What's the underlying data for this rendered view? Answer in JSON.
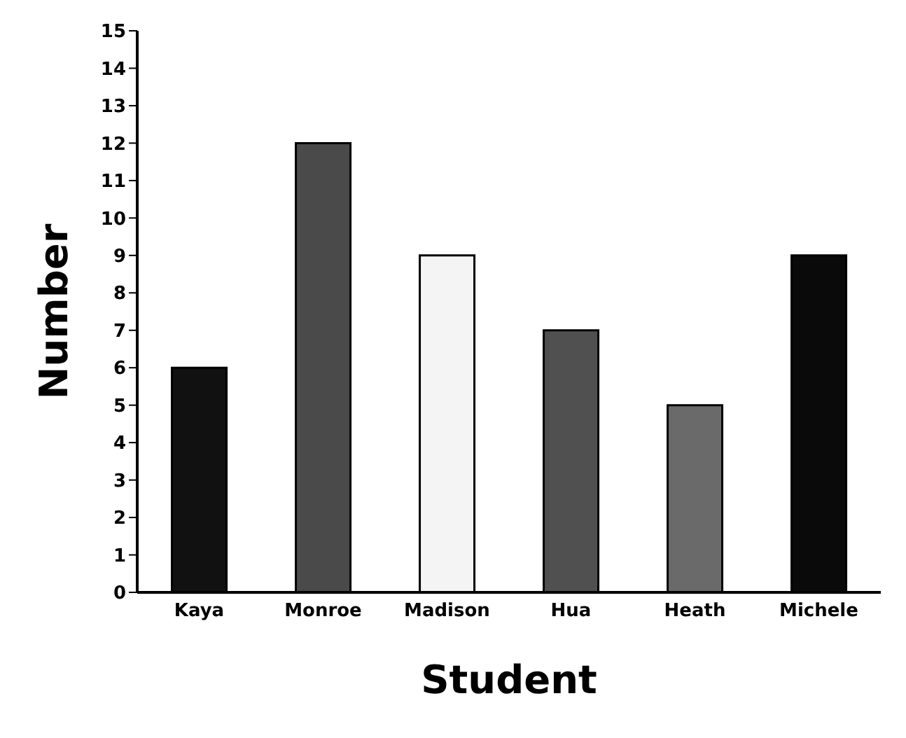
{
  "chart_data": {
    "type": "bar",
    "xlabel": "Student",
    "ylabel": "Number",
    "categories": [
      "Kaya",
      "Monroe",
      "Madison",
      "Hua",
      "Heath",
      "Michele"
    ],
    "values": [
      6,
      12,
      9,
      7,
      5,
      9
    ],
    "colors": [
      "#111111",
      "#4a4a4a",
      "#f4f4f4",
      "#505050",
      "#6a6a6a",
      "#0a0a0a"
    ],
    "ylim": [
      0,
      15
    ],
    "yticks": [
      0,
      1,
      2,
      3,
      4,
      5,
      6,
      7,
      8,
      9,
      10,
      11,
      12,
      13,
      14,
      15
    ],
    "grid": false,
    "legend": false
  }
}
